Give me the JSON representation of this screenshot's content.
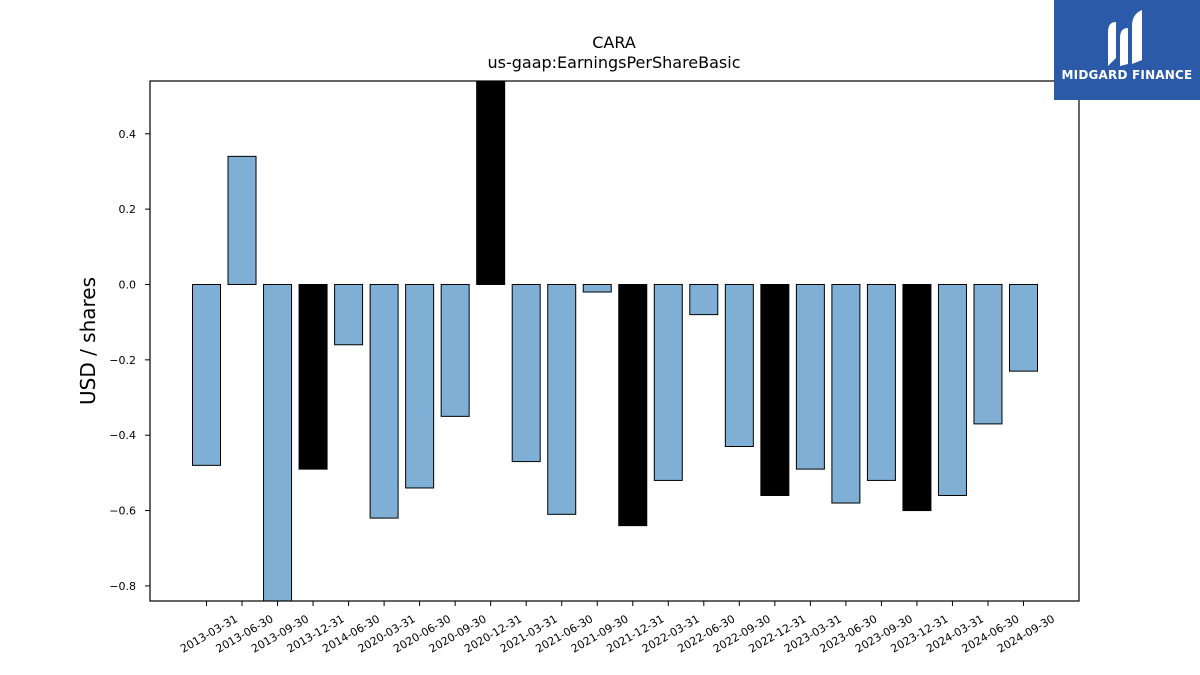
{
  "chart_data": {
    "type": "bar",
    "title": "CARA",
    "subtitle": "us-gaap:EarningsPerShareBasic",
    "xlabel": "",
    "ylabel": "USD / shares",
    "ylim": [
      -0.84,
      0.54
    ],
    "yticks": [
      0.4,
      0.2,
      0.0,
      -0.2,
      -0.4,
      -0.6,
      -0.8
    ],
    "ytick_labels": [
      "0.4",
      "0.2",
      "0.0",
      "−0.2",
      "−0.4",
      "−0.6",
      "−0.8"
    ],
    "categories": [
      "2013-03-31",
      "2013-06-30",
      "2013-09-30",
      "2013-12-31",
      "2014-06-30",
      "2020-03-31",
      "2020-06-30",
      "2020-09-30",
      "2020-12-31",
      "2021-03-31",
      "2021-06-30",
      "2021-09-30",
      "2021-12-31",
      "2022-03-31",
      "2022-06-30",
      "2022-09-30",
      "2022-12-31",
      "2023-03-31",
      "2023-06-30",
      "2023-09-30",
      "2023-12-31",
      "2024-03-31",
      "2024-06-30",
      "2024-09-30"
    ],
    "values": [
      -0.48,
      0.34,
      -0.84,
      -0.49,
      -0.16,
      -0.62,
      -0.54,
      -0.35,
      0.54,
      -0.47,
      -0.61,
      -0.02,
      -0.64,
      -0.52,
      -0.08,
      -0.43,
      -0.56,
      -0.49,
      -0.58,
      -0.52,
      -0.6,
      -0.56,
      -0.37,
      -0.23
    ],
    "bar_colors": [
      "#7fafd4",
      "#7fafd4",
      "#7fafd4",
      "#000000",
      "#7fafd4",
      "#7fafd4",
      "#7fafd4",
      "#7fafd4",
      "#000000",
      "#7fafd4",
      "#7fafd4",
      "#7fafd4",
      "#000000",
      "#7fafd4",
      "#7fafd4",
      "#7fafd4",
      "#000000",
      "#7fafd4",
      "#7fafd4",
      "#7fafd4",
      "#000000",
      "#7fafd4",
      "#7fafd4",
      "#7fafd4"
    ],
    "grid": false,
    "legend": "none"
  },
  "logo": {
    "text": "MIDGARD FINANCE",
    "background": "#2b5aa8"
  }
}
